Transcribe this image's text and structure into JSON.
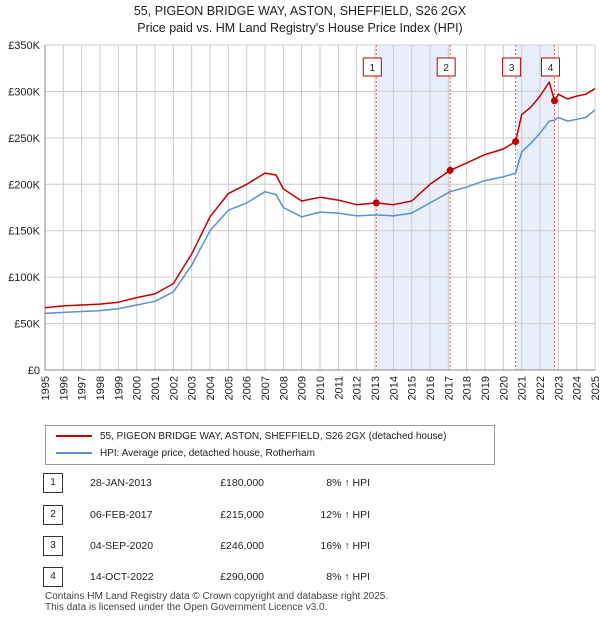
{
  "header": {
    "title_line1": "55, PIGEON BRIDGE WAY, ASTON, SHEFFIELD, S26 2GX",
    "title_line2": "Price paid vs. HM Land Registry's House Price Index (HPI)"
  },
  "legend": {
    "property_label": "55, PIGEON BRIDGE WAY, ASTON, SHEFFIELD, S26 2GX (detached house)",
    "hpi_label": "HPI: Average price, detached house, Rotherham"
  },
  "sales": [
    {
      "num": "1",
      "date": "28-JAN-2013",
      "price": "£180,000",
      "hpi": "8% ↑ HPI"
    },
    {
      "num": "2",
      "date": "06-FEB-2017",
      "price": "£215,000",
      "hpi": "12% ↑ HPI"
    },
    {
      "num": "3",
      "date": "04-SEP-2020",
      "price": "£246,000",
      "hpi": "16% ↑ HPI"
    },
    {
      "num": "4",
      "date": "14-OCT-2022",
      "price": "£290,000",
      "hpi": "8% ↑ HPI"
    }
  ],
  "footer": {
    "line1": "Contains HM Land Registry data © Crown copyright and database right 2025.",
    "line2": "This data is licensed under the Open Government Licence v3.0."
  },
  "colors": {
    "property": "#c00000",
    "hpi": "#5b8fd0",
    "band": "#e8eefa",
    "grid": "#cccccc"
  },
  "chart_data": {
    "type": "line",
    "xlim": [
      1995,
      2025
    ],
    "ylim": [
      0,
      350000
    ],
    "y_ticks": [
      0,
      50000,
      100000,
      150000,
      200000,
      250000,
      300000,
      350000
    ],
    "y_tick_labels": [
      "£0",
      "£50K",
      "£100K",
      "£150K",
      "£200K",
      "£250K",
      "£300K",
      "£350K"
    ],
    "x_ticks": [
      "1995",
      "1996",
      "1997",
      "1998",
      "1999",
      "2000",
      "2001",
      "2002",
      "2003",
      "2004",
      "2005",
      "2006",
      "2007",
      "2008",
      "2009",
      "2010",
      "2011",
      "2012",
      "2013",
      "2014",
      "2015",
      "2016",
      "2017",
      "2018",
      "2019",
      "2020",
      "2021",
      "2022",
      "2023",
      "2024",
      "2025"
    ],
    "series": [
      {
        "name": "55, PIGEON BRIDGE WAY, ASTON, SHEFFIELD, S26 2GX (detached house)",
        "x": [
          1995,
          1996,
          1997,
          1998,
          1999,
          2000,
          2001,
          2002,
          2003,
          2004,
          2005,
          2006,
          2007,
          2007.6,
          2008,
          2009,
          2010,
          2011,
          2012,
          2013.07,
          2014,
          2015,
          2016,
          2017.1,
          2018,
          2019,
          2020,
          2020.67,
          2021,
          2021.5,
          2022,
          2022.5,
          2022.79,
          2023,
          2023.5,
          2024,
          2024.5,
          2025
        ],
        "y": [
          67000,
          69000,
          70000,
          71000,
          73000,
          78000,
          82000,
          93000,
          125000,
          165000,
          190000,
          200000,
          212000,
          210000,
          195000,
          182000,
          186000,
          183000,
          178000,
          180000,
          178000,
          182000,
          200000,
          215000,
          223000,
          232000,
          238000,
          246000,
          275000,
          283000,
          295000,
          310000,
          290000,
          297000,
          292000,
          295000,
          297000,
          303000
        ]
      },
      {
        "name": "HPI: Average price, detached house, Rotherham",
        "x": [
          1995,
          1996,
          1997,
          1998,
          1999,
          2000,
          2001,
          2002,
          2003,
          2004,
          2005,
          2006,
          2007,
          2007.6,
          2008,
          2009,
          2010,
          2011,
          2012,
          2013.07,
          2014,
          2015,
          2016,
          2017.1,
          2018,
          2019,
          2020,
          2020.67,
          2021,
          2021.5,
          2022,
          2022.5,
          2022.79,
          2023,
          2023.5,
          2024,
          2024.5,
          2025
        ],
        "y": [
          61000,
          62000,
          63000,
          64000,
          66000,
          70000,
          74000,
          84000,
          113000,
          150000,
          172000,
          180000,
          192000,
          189000,
          175000,
          165000,
          170000,
          169000,
          166000,
          167000,
          166000,
          169000,
          180000,
          192000,
          197000,
          204000,
          208000,
          212000,
          235000,
          244000,
          255000,
          268000,
          269000,
          272000,
          268000,
          270000,
          272000,
          280000
        ]
      }
    ],
    "sale_points": [
      {
        "label": "1",
        "x": 2013.07,
        "y": 180000
      },
      {
        "label": "2",
        "x": 2017.1,
        "y": 215000
      },
      {
        "label": "3",
        "x": 2020.67,
        "y": 246000
      },
      {
        "label": "4",
        "x": 2022.79,
        "y": 290000
      }
    ],
    "shaded_periods": [
      [
        2013.07,
        2017.1
      ],
      [
        2020.67,
        2022.79
      ]
    ]
  }
}
